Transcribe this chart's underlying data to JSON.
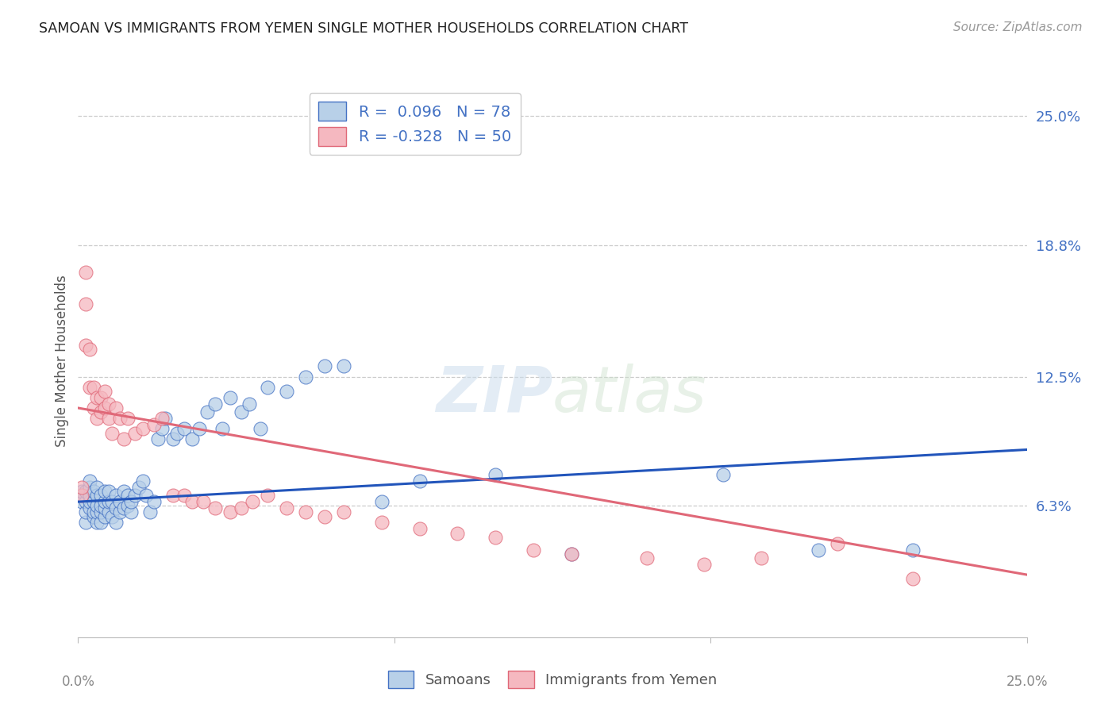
{
  "title": "SAMOAN VS IMMIGRANTS FROM YEMEN SINGLE MOTHER HOUSEHOLDS CORRELATION CHART",
  "source": "Source: ZipAtlas.com",
  "ylabel": "Single Mother Households",
  "ytick_labels": [
    "6.3%",
    "12.5%",
    "18.8%",
    "25.0%"
  ],
  "ytick_values": [
    0.063,
    0.125,
    0.188,
    0.25
  ],
  "xmin": 0.0,
  "xmax": 0.25,
  "ymin": 0.0,
  "ymax": 0.265,
  "legend_r_samoan": "0.096",
  "legend_n_samoan": "78",
  "legend_r_yemen": "-0.328",
  "legend_n_yemen": "50",
  "color_samoan_fill": "#b8d0e8",
  "color_samoan_edge": "#4472c4",
  "color_samoan_line": "#2255bb",
  "color_yemen_fill": "#f5b8c0",
  "color_yemen_edge": "#e06878",
  "color_yemen_line": "#e06878",
  "background_color": "#ffffff",
  "grid_color": "#cccccc",
  "watermark": "ZIPatlas",
  "samoan_line_x0": 0.0,
  "samoan_line_y0": 0.065,
  "samoan_line_x1": 0.25,
  "samoan_line_y1": 0.09,
  "yemen_line_x0": 0.0,
  "yemen_line_y0": 0.11,
  "yemen_line_x1": 0.25,
  "yemen_line_y1": 0.03,
  "samoan_x": [
    0.001,
    0.001,
    0.001,
    0.002,
    0.002,
    0.002,
    0.002,
    0.003,
    0.003,
    0.003,
    0.003,
    0.003,
    0.004,
    0.004,
    0.004,
    0.004,
    0.005,
    0.005,
    0.005,
    0.005,
    0.005,
    0.006,
    0.006,
    0.006,
    0.006,
    0.007,
    0.007,
    0.007,
    0.007,
    0.008,
    0.008,
    0.008,
    0.009,
    0.009,
    0.01,
    0.01,
    0.01,
    0.011,
    0.011,
    0.012,
    0.012,
    0.013,
    0.013,
    0.014,
    0.014,
    0.015,
    0.016,
    0.017,
    0.018,
    0.019,
    0.02,
    0.021,
    0.022,
    0.023,
    0.025,
    0.026,
    0.028,
    0.03,
    0.032,
    0.034,
    0.036,
    0.038,
    0.04,
    0.043,
    0.045,
    0.048,
    0.05,
    0.055,
    0.06,
    0.065,
    0.07,
    0.08,
    0.09,
    0.11,
    0.13,
    0.17,
    0.195,
    0.22
  ],
  "samoan_y": [
    0.065,
    0.068,
    0.07,
    0.055,
    0.06,
    0.065,
    0.07,
    0.062,
    0.065,
    0.068,
    0.072,
    0.075,
    0.058,
    0.06,
    0.065,
    0.07,
    0.055,
    0.06,
    0.063,
    0.068,
    0.072,
    0.055,
    0.06,
    0.063,
    0.068,
    0.058,
    0.062,
    0.065,
    0.07,
    0.06,
    0.065,
    0.07,
    0.058,
    0.065,
    0.055,
    0.062,
    0.068,
    0.06,
    0.065,
    0.062,
    0.07,
    0.063,
    0.068,
    0.06,
    0.065,
    0.068,
    0.072,
    0.075,
    0.068,
    0.06,
    0.065,
    0.095,
    0.1,
    0.105,
    0.095,
    0.098,
    0.1,
    0.095,
    0.1,
    0.108,
    0.112,
    0.1,
    0.115,
    0.108,
    0.112,
    0.1,
    0.12,
    0.118,
    0.125,
    0.13,
    0.13,
    0.065,
    0.075,
    0.078,
    0.04,
    0.078,
    0.042,
    0.042
  ],
  "yemen_x": [
    0.001,
    0.001,
    0.002,
    0.002,
    0.002,
    0.003,
    0.003,
    0.004,
    0.004,
    0.005,
    0.005,
    0.006,
    0.006,
    0.007,
    0.007,
    0.008,
    0.008,
    0.009,
    0.01,
    0.011,
    0.012,
    0.013,
    0.015,
    0.017,
    0.02,
    0.022,
    0.025,
    0.028,
    0.03,
    0.033,
    0.036,
    0.04,
    0.043,
    0.046,
    0.05,
    0.055,
    0.06,
    0.065,
    0.07,
    0.08,
    0.09,
    0.1,
    0.11,
    0.12,
    0.13,
    0.15,
    0.165,
    0.18,
    0.2,
    0.22
  ],
  "yemen_y": [
    0.068,
    0.072,
    0.14,
    0.16,
    0.175,
    0.12,
    0.138,
    0.11,
    0.12,
    0.105,
    0.115,
    0.108,
    0.115,
    0.11,
    0.118,
    0.105,
    0.112,
    0.098,
    0.11,
    0.105,
    0.095,
    0.105,
    0.098,
    0.1,
    0.102,
    0.105,
    0.068,
    0.068,
    0.065,
    0.065,
    0.062,
    0.06,
    0.062,
    0.065,
    0.068,
    0.062,
    0.06,
    0.058,
    0.06,
    0.055,
    0.052,
    0.05,
    0.048,
    0.042,
    0.04,
    0.038,
    0.035,
    0.038,
    0.045,
    0.028
  ]
}
